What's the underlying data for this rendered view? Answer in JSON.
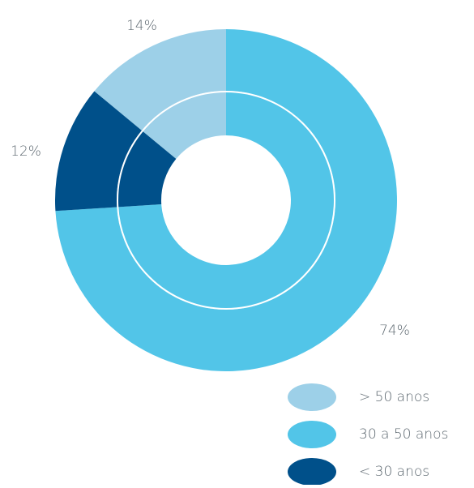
{
  "chart_data": {
    "type": "donut",
    "categories": [
      "> 50 anos",
      "30 a 50 anos",
      "< 30 anos"
    ],
    "values": [
      14,
      74,
      12
    ],
    "value_labels": [
      "14%",
      "74%",
      "12%"
    ],
    "colors": [
      "#9dd0e8",
      "#52c5e8",
      "#00508a"
    ],
    "legend": "bottom-right"
  }
}
